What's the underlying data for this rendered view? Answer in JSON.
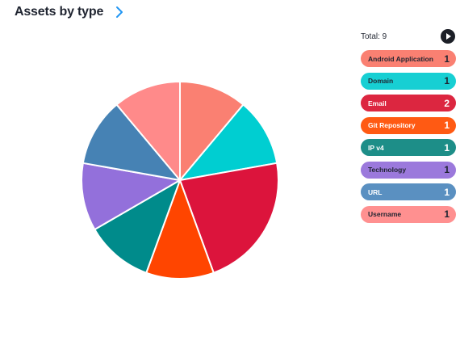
{
  "header": {
    "title": "Assets by type"
  },
  "total_label": "Total: 9",
  "legend": [
    {
      "label": "Android Application",
      "count": "1",
      "color": "#FA8072",
      "text_color": "#1f2430"
    },
    {
      "label": "Domain",
      "count": "1",
      "color": "#17CFD3",
      "text_color": "#1f2430"
    },
    {
      "label": "Email",
      "count": "2",
      "color": "#DC2640",
      "text_color": "#ffffff"
    },
    {
      "label": "Git Repository",
      "count": "1",
      "color": "#FF5A13",
      "text_color": "#ffffff"
    },
    {
      "label": "IP v4",
      "count": "1",
      "color": "#1D8E88",
      "text_color": "#ffffff"
    },
    {
      "label": "Technology",
      "count": "1",
      "color": "#9B79DC",
      "text_color": "#1f2430"
    },
    {
      "label": "URL",
      "count": "1",
      "color": "#5A90C1",
      "text_color": "#ffffff"
    },
    {
      "label": "Username",
      "count": "1",
      "color": "#FF9090",
      "text_color": "#1f2430"
    }
  ],
  "chart_data": {
    "type": "pie",
    "categories": [
      "Android Application",
      "Domain",
      "Email",
      "Git Repository",
      "IP v4",
      "Technology",
      "URL",
      "Username"
    ],
    "values": [
      1,
      1,
      2,
      1,
      1,
      1,
      1,
      1
    ],
    "colors": [
      "#FA8072",
      "#00CED1",
      "#DC143C",
      "#FF4500",
      "#008B8B",
      "#9370DB",
      "#4682B4",
      "#FF8A8A"
    ],
    "total": 9,
    "start_angle_deg": 0,
    "direction": "clockwise",
    "legend": "right"
  }
}
